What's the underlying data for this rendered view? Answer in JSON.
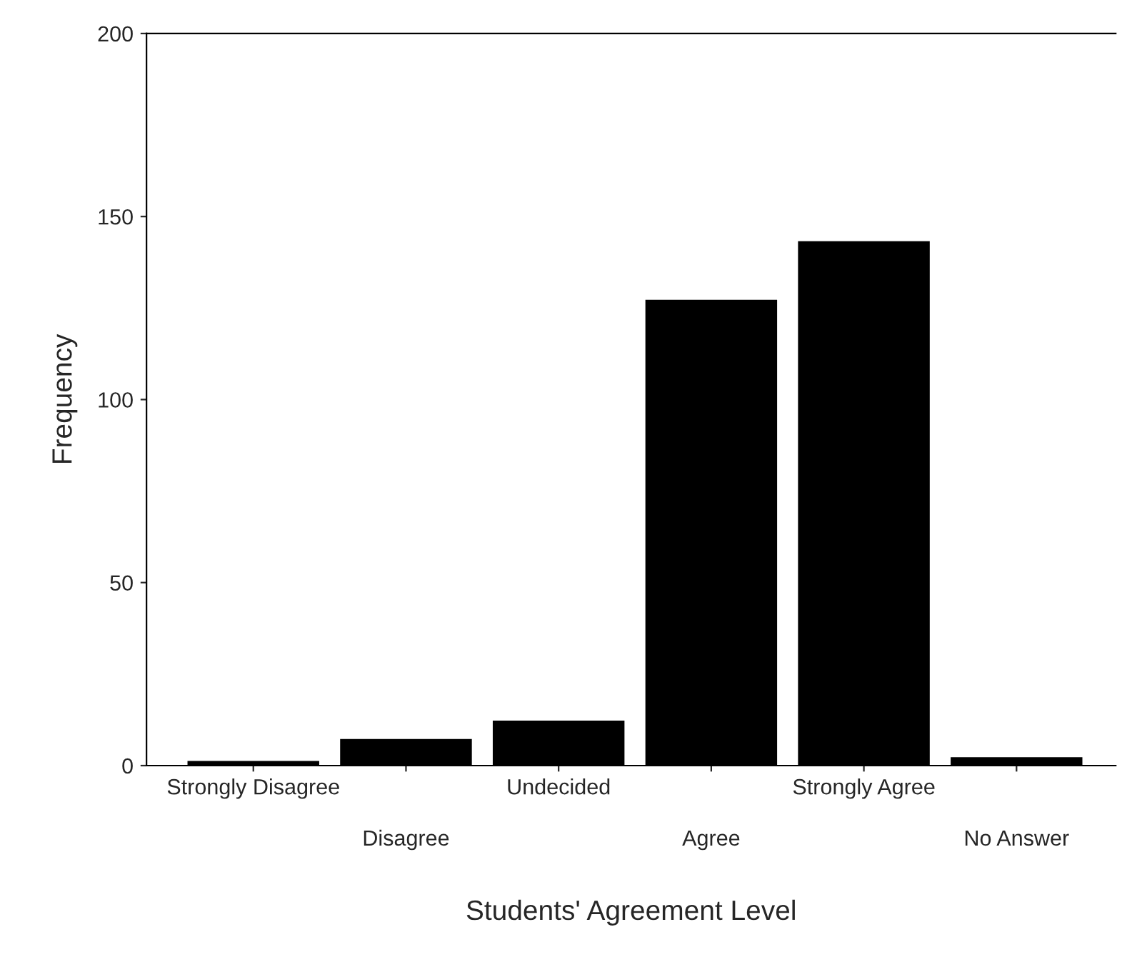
{
  "chart_data": {
    "type": "bar",
    "xlabel": "Students' Agreement Level",
    "ylabel": "Frequency",
    "categories": [
      "Strongly Disagree",
      "Disagree",
      "Undecided",
      "Agree",
      "Strongly Agree",
      "No Answer"
    ],
    "values": [
      1,
      7,
      12,
      127,
      143,
      2
    ],
    "color": "#000000",
    "ylim": [
      0,
      200
    ],
    "yticks": [
      0,
      50,
      100,
      150,
      200
    ],
    "grid": false
  }
}
